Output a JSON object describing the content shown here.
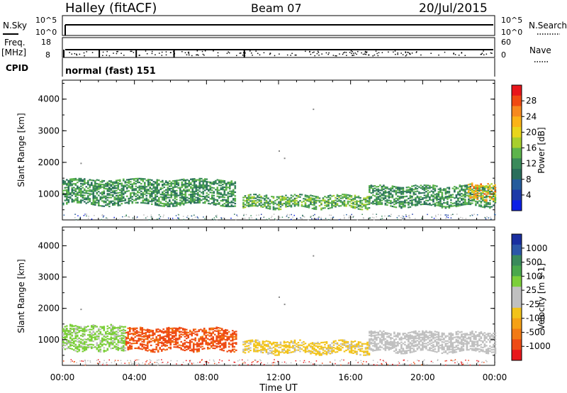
{
  "header": {
    "station": "Halley (fitACF)",
    "beam": "Beam 07",
    "date": "20/Jul/2015"
  },
  "top_panels": {
    "nsky_label": "N.Sky",
    "nsearch_label": "N.Search",
    "freq_label_1": "Freq.",
    "freq_label_2": "[MHz]",
    "nave_label": "Nave",
    "cpid_label": "CPID",
    "nsky_ticks": [
      "10^5",
      "10^0"
    ],
    "nsearch_ticks": [
      "10^5",
      "10^0"
    ],
    "freq_ticks": [
      "18",
      "8"
    ],
    "nave_ticks": [
      "60",
      "0"
    ],
    "cpid_value": "normal (fast) 151"
  },
  "axes": {
    "ylabel": "Slant Range [km]",
    "y_ticks": [
      "4000",
      "3000",
      "2000",
      "1000"
    ],
    "x_ticks": [
      "00:00",
      "04:00",
      "08:00",
      "12:00",
      "16:00",
      "20:00",
      "00:00"
    ],
    "xlabel": "Time UT"
  },
  "power_colorbar": {
    "label": "Power [dB]",
    "ticks": [
      "28",
      "24",
      "20",
      "16",
      "12",
      "8",
      "4"
    ],
    "colors": [
      "#e8161b",
      "#f04a12",
      "#f7891e",
      "#fbb317",
      "#e9d51b",
      "#a8cf2d",
      "#5db44c",
      "#3a8a5b",
      "#2a6e5c",
      "#255c9c",
      "#1e3aa8",
      "#0c1fe6"
    ]
  },
  "velocity_colorbar": {
    "label": "Velocity [m s-1]",
    "ticks": [
      "1000",
      "500",
      "100",
      "25",
      "-25",
      "-100",
      "-500",
      "-1000"
    ],
    "colors": [
      "#1a2fa0",
      "#2c57a8",
      "#3a8a5b",
      "#4aa84c",
      "#7ccf3a",
      "#c0c0c0",
      "#c0c0c0",
      "#f2c31a",
      "#f5a116",
      "#f27a15",
      "#ee4b15",
      "#e8161b"
    ]
  },
  "chart_data": [
    {
      "type": "heatmap",
      "title": "Power",
      "xlabel": "Time UT",
      "ylabel": "Slant Range [km]",
      "xlim": [
        0,
        24
      ],
      "ylim": [
        180,
        4600
      ],
      "colorbar": "Power [dB]",
      "colorbar_range": [
        0,
        32
      ],
      "echo_regions": [
        {
          "t_start": 0.0,
          "t_end": 9.6,
          "range_low": 650,
          "range_high": 1450,
          "typical_value": 12
        },
        {
          "t_start": 10.0,
          "t_end": 17.0,
          "range_low": 550,
          "range_high": 950,
          "typical_value": 14
        },
        {
          "t_start": 17.0,
          "t_end": 24.0,
          "range_low": 600,
          "range_high": 1250,
          "typical_value": 12
        },
        {
          "t_start": 22.5,
          "t_end": 24.0,
          "range_low": 800,
          "range_high": 1300,
          "typical_value": 22
        }
      ]
    },
    {
      "type": "heatmap",
      "title": "Velocity",
      "xlabel": "Time UT",
      "ylabel": "Slant Range [km]",
      "xlim": [
        0,
        24
      ],
      "ylim": [
        180,
        4600
      ],
      "colorbar": "Velocity [m s-1]",
      "colorbar_range": [
        -1000,
        1000
      ],
      "echo_regions": [
        {
          "t_start": 0.0,
          "t_end": 3.5,
          "range_low": 650,
          "range_high": 1450,
          "typical_value": 60
        },
        {
          "t_start": 3.5,
          "t_end": 9.6,
          "range_low": 650,
          "range_high": 1350,
          "typical_value": -300
        },
        {
          "t_start": 10.0,
          "t_end": 17.0,
          "range_low": 550,
          "range_high": 950,
          "typical_value": -30
        },
        {
          "t_start": 17.0,
          "t_end": 24.0,
          "range_low": 600,
          "range_high": 1250,
          "typical_value": 20
        }
      ]
    }
  ]
}
